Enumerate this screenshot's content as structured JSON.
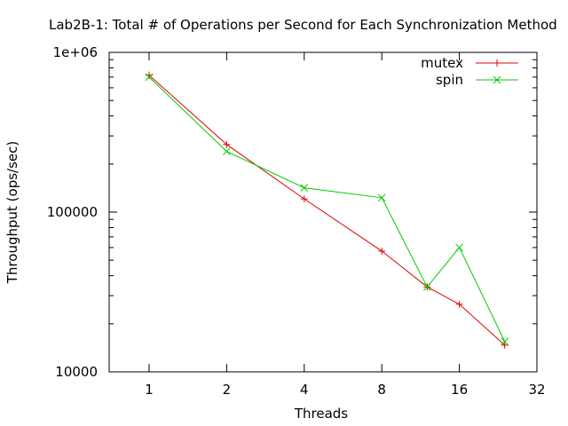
{
  "chart_data": {
    "type": "line",
    "title": "Lab2B-1: Total # of Operations per Second for Each Synchronization Method",
    "xlabel": "Threads",
    "ylabel": "Throughput (ops/sec)",
    "x_scale": "log2",
    "y_scale": "log10",
    "xlim": [
      0.7,
      32
    ],
    "ylim": [
      10000,
      1000000
    ],
    "x_ticks": [
      1,
      2,
      4,
      8,
      16,
      32
    ],
    "x_tick_labels": [
      "1",
      "2",
      "4",
      "8",
      "16",
      "32"
    ],
    "y_ticks": [
      10000,
      100000,
      1000000
    ],
    "y_tick_labels": [
      "10000",
      "100000",
      "1e+06"
    ],
    "grid": false,
    "legend_position": "top-right",
    "series": [
      {
        "name": "mutex",
        "color": "#e00000",
        "marker": "plus",
        "x": [
          1,
          2,
          4,
          8,
          12,
          16,
          24
        ],
        "y": [
          720000,
          265000,
          121000,
          57000,
          34000,
          26500,
          14700
        ]
      },
      {
        "name": "spin",
        "color": "#00cc00",
        "marker": "cross",
        "x": [
          1,
          2,
          4,
          8,
          12,
          16,
          24
        ],
        "y": [
          700000,
          240000,
          142000,
          123000,
          34000,
          60000,
          15500
        ]
      }
    ]
  }
}
